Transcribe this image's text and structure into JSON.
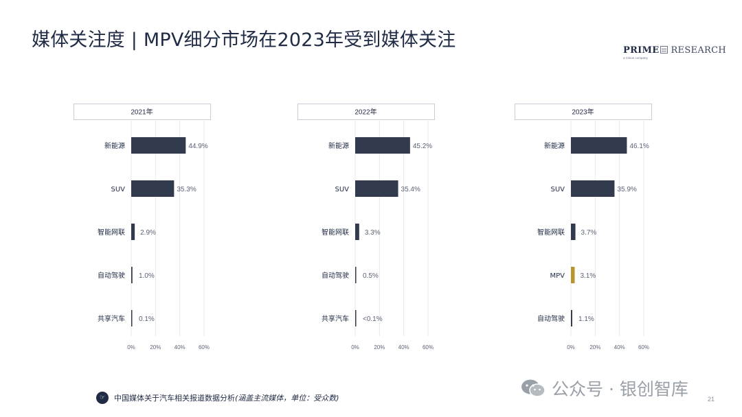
{
  "page": {
    "title": "媒体关注度 | MPV细分市场在2023年受到媒体关注",
    "logo_prime": "PRIME",
    "logo_research": "RESEARCH",
    "logo_sub": "a Cision company",
    "footer_text": "中国媒体关于汽车相关报道数据分析",
    "footer_note": "(涵盖主流媒体，单位：受众数)",
    "watermark": "公众号 · 银创智库",
    "page_number": "21",
    "colors": {
      "bar": "#323b4d",
      "highlight": "#b8962e",
      "text": "#1f2a44"
    }
  },
  "chart_data": [
    {
      "type": "bar",
      "orientation": "horizontal",
      "title": "2021年",
      "categories": [
        "新能源",
        "SUV",
        "智能网联",
        "自动驾驶",
        "共享汽车"
      ],
      "values": [
        44.9,
        35.3,
        2.9,
        1.0,
        0.1
      ],
      "labels": [
        "44.9%",
        "35.3%",
        "2.9%",
        "1.0%",
        "0.1%"
      ],
      "xlim": [
        0,
        60
      ],
      "ticks": [
        "0%",
        "20%",
        "40%",
        "60%"
      ],
      "grid": true
    },
    {
      "type": "bar",
      "orientation": "horizontal",
      "title": "2022年",
      "categories": [
        "新能源",
        "SUV",
        "智能网联",
        "自动驾驶",
        "共享汽车"
      ],
      "values": [
        45.2,
        35.4,
        3.3,
        0.5,
        0.05
      ],
      "labels": [
        "45.2%",
        "35.4%",
        "3.3%",
        "0.5%",
        "<0.1%"
      ],
      "xlim": [
        0,
        60
      ],
      "ticks": [
        "0%",
        "20%",
        "40%",
        "60%"
      ],
      "grid": true
    },
    {
      "type": "bar",
      "orientation": "horizontal",
      "title": "2023年",
      "categories": [
        "新能源",
        "SUV",
        "智能网联",
        "MPV",
        "自动驾驶"
      ],
      "values": [
        46.1,
        35.9,
        3.7,
        3.1,
        1.1
      ],
      "labels": [
        "46.1%",
        "35.9%",
        "3.7%",
        "3.1%",
        "1.1%"
      ],
      "highlight": "MPV",
      "xlim": [
        0,
        60
      ],
      "ticks": [
        "0%",
        "20%",
        "40%",
        "60%"
      ],
      "grid": true
    }
  ]
}
